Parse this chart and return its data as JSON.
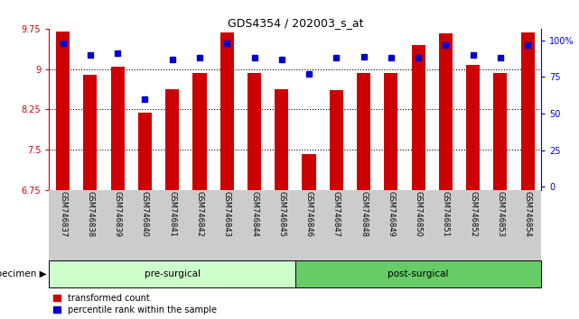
{
  "title": "GDS4354 / 202003_s_at",
  "samples": [
    "GSM746837",
    "GSM746838",
    "GSM746839",
    "GSM746840",
    "GSM746841",
    "GSM746842",
    "GSM746843",
    "GSM746844",
    "GSM746845",
    "GSM746846",
    "GSM746847",
    "GSM746848",
    "GSM746849",
    "GSM746850",
    "GSM746851",
    "GSM746852",
    "GSM746853",
    "GSM746854"
  ],
  "bar_values": [
    9.7,
    8.9,
    9.05,
    8.18,
    8.62,
    8.93,
    9.68,
    8.92,
    8.62,
    7.42,
    8.6,
    8.93,
    8.93,
    9.45,
    9.67,
    9.08,
    8.93,
    9.68
  ],
  "percentile_values": [
    98,
    90,
    91,
    60,
    87,
    88,
    98,
    88,
    87,
    77,
    88,
    89,
    88,
    88,
    97,
    90,
    88,
    97
  ],
  "ylim": [
    6.75,
    9.75
  ],
  "yticks": [
    6.75,
    7.5,
    8.25,
    9.0,
    9.75
  ],
  "ytick_labels": [
    "6.75",
    "7.5",
    "8.25",
    "9",
    "9.75"
  ],
  "right_yticks": [
    0,
    25,
    50,
    75,
    100
  ],
  "right_ytick_labels": [
    "0",
    "25",
    "50",
    "75",
    "100%"
  ],
  "bar_color": "#cc0000",
  "dot_color": "#0000cc",
  "pre_surgical_count": 9,
  "post_surgical_count": 9,
  "pre_color": "#ccffcc",
  "post_color": "#66cc66",
  "grid_color": "#000000",
  "left_axis_color": "#cc0000",
  "right_axis_color": "#0000cc",
  "bg_white": "#ffffff",
  "bg_gray": "#cccccc",
  "legend_red_label": "transformed count",
  "legend_blue_label": "percentile rank within the sample",
  "specimen_label": "specimen"
}
